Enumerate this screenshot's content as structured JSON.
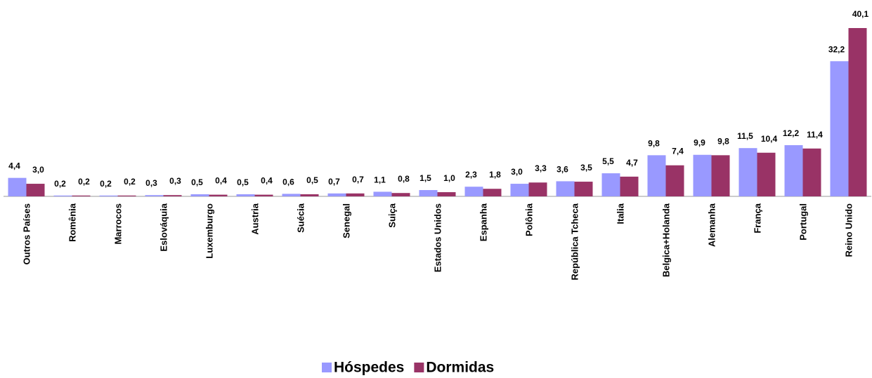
{
  "chart_data": {
    "type": "bar",
    "categories": [
      "Outros Países",
      "Romênia",
      "Marrocos",
      "Eslováquia",
      "Luxemburgo",
      "Austria",
      "Suécia",
      "Senegal",
      "Suiça",
      "Estados Unidos",
      "Espanha",
      "Polônia",
      "República Tcheca",
      "Italia",
      "Belgica+Holanda",
      "Alemanha",
      "França",
      "Portugal",
      "Reino Unido"
    ],
    "series": [
      {
        "name": "Hóspedes",
        "color": "#9999ff",
        "values": [
          4.4,
          0.2,
          0.2,
          0.3,
          0.5,
          0.5,
          0.6,
          0.7,
          1.1,
          1.5,
          2.3,
          3.0,
          3.6,
          5.5,
          9.8,
          9.9,
          11.5,
          12.2,
          32.2
        ],
        "value_labels": [
          "4,4",
          "0,2",
          "0,2",
          "0,3",
          "0,5",
          "0,5",
          "0,6",
          "0,7",
          "1,1",
          "1,5",
          "2,3",
          "3,0",
          "3,6",
          "5,5",
          "9,8",
          "9,9",
          "11,5",
          "12,2",
          "32,2"
        ]
      },
      {
        "name": "Dormidas",
        "color": "#993366",
        "values": [
          3.0,
          0.2,
          0.2,
          0.3,
          0.4,
          0.4,
          0.5,
          0.7,
          0.8,
          1.0,
          1.8,
          3.3,
          3.5,
          4.7,
          7.4,
          9.8,
          10.4,
          11.4,
          40.1
        ],
        "value_labels": [
          "3,0",
          "0,2",
          "0,2",
          "0,3",
          "0,4",
          "0,4",
          "0,5",
          "0,7",
          "0,8",
          "1,0",
          "1,8",
          "3,3",
          "3,5",
          "4,7",
          "7,4",
          "9,8",
          "10,4",
          "11,4",
          "40,1"
        ]
      }
    ],
    "legend": "bottom"
  }
}
